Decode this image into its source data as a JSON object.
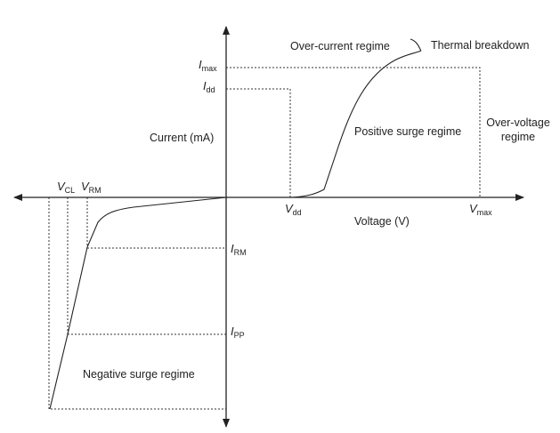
{
  "labels": {
    "over_current": "Over-current regime",
    "thermal": "Thermal breakdown",
    "positive_surge": "Positive surge regime",
    "over_voltage_1": "Over-voltage",
    "over_voltage_2": "regime",
    "current": "Current (mA)",
    "voltage": "Voltage (V)",
    "negative_surge": "Negative surge regime"
  },
  "symbols": {
    "imax": {
      "main": "I",
      "sub": "max"
    },
    "idd": {
      "main": "I",
      "sub": "dd"
    },
    "vdd": {
      "main": "V",
      "sub": "dd"
    },
    "vmax": {
      "main": "V",
      "sub": "max"
    },
    "vcl": {
      "main": "V",
      "sub": "CL"
    },
    "vrm": {
      "main": "V",
      "sub": "RM"
    },
    "irm": {
      "main": "I",
      "sub": "RM"
    },
    "ipp": {
      "main": "I",
      "sub": "PP"
    }
  }
}
